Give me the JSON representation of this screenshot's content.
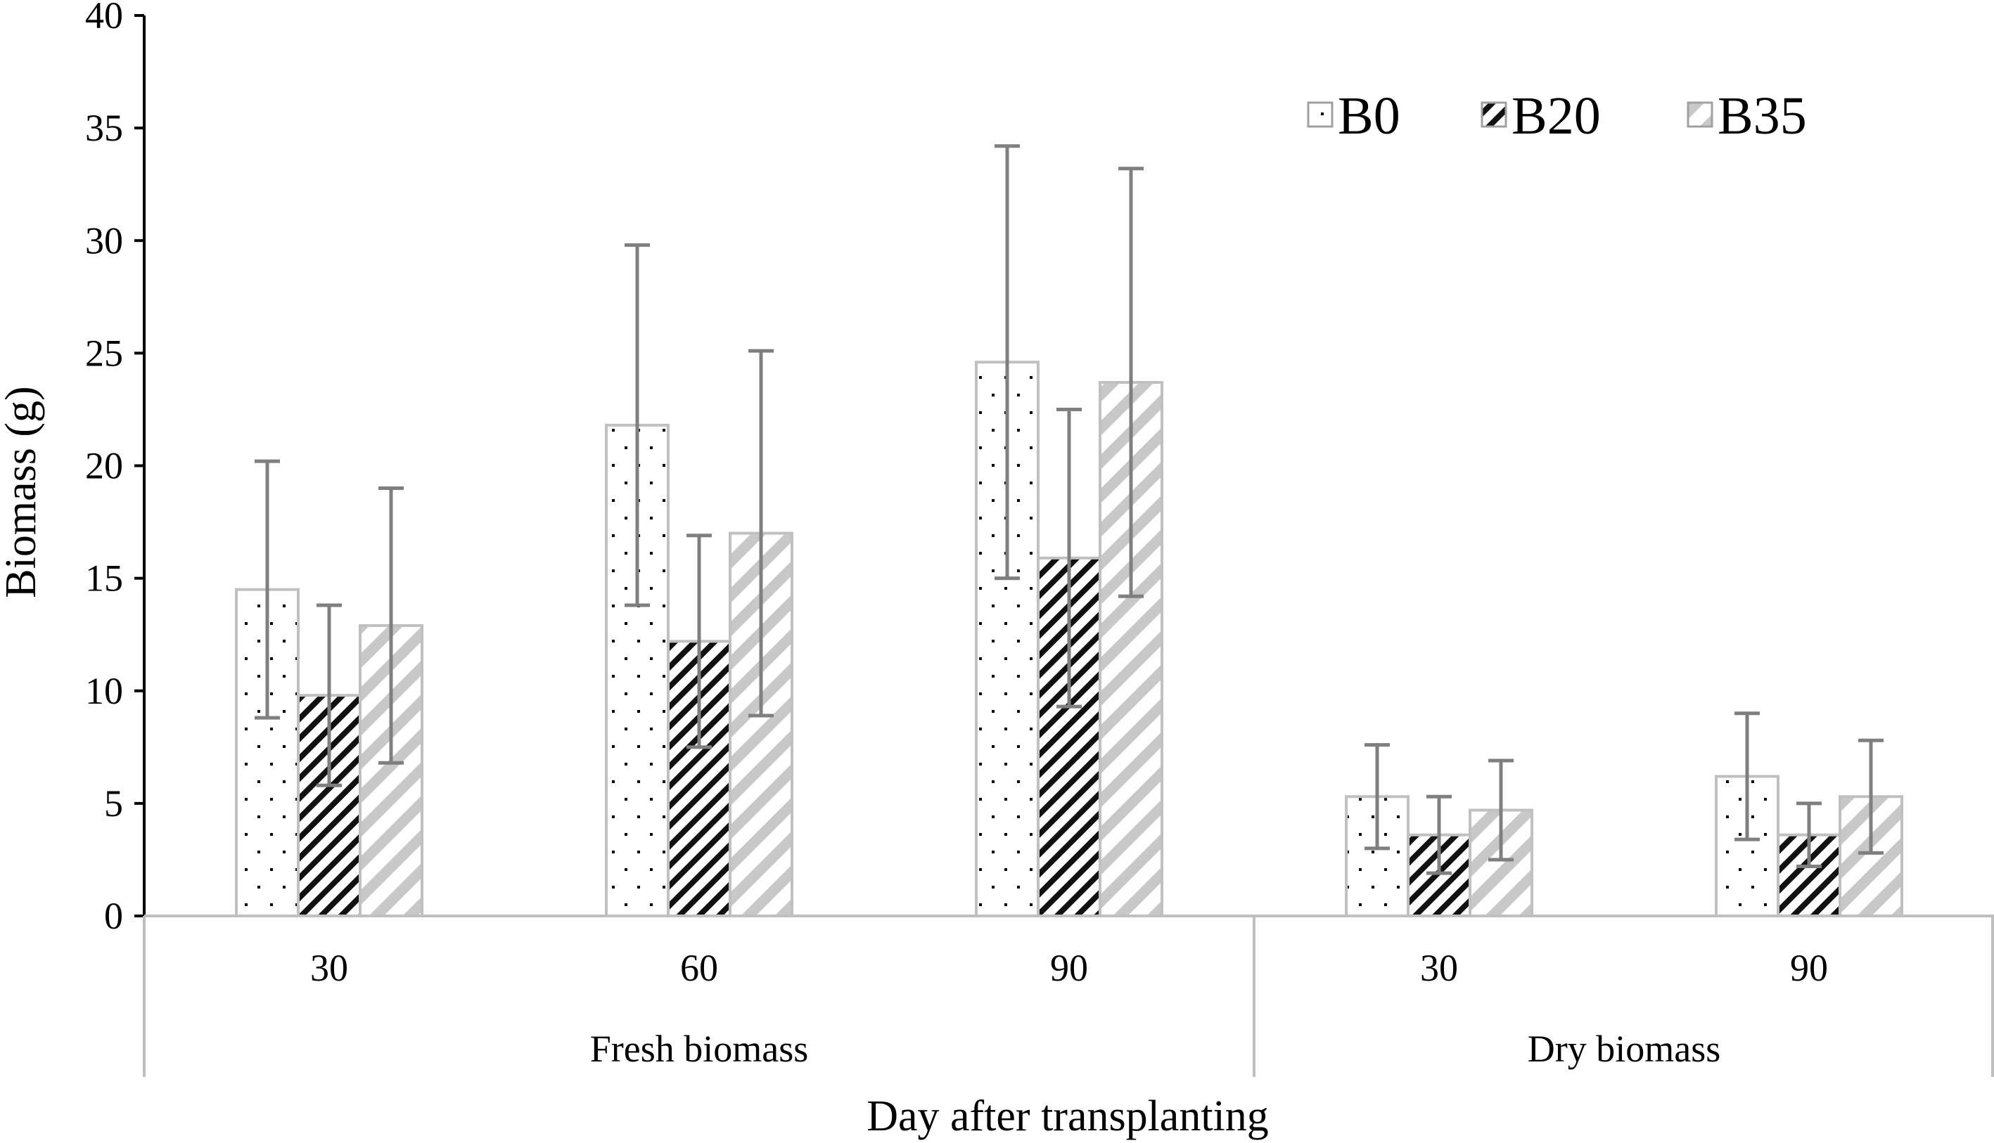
{
  "chart_data": {
    "type": "bar",
    "title": "",
    "xlabel": "Day after transplanting",
    "ylabel": "Biomass (g)",
    "ylim": [
      0,
      40
    ],
    "yticks": [
      0,
      5,
      10,
      15,
      20,
      25,
      30,
      35,
      40
    ],
    "groups": [
      {
        "name": "Fresh biomass",
        "categories": [
          "30",
          "60",
          "90"
        ]
      },
      {
        "name": "Dry biomass",
        "categories": [
          "30",
          "90"
        ]
      }
    ],
    "categories": [
      "30",
      "60",
      "90",
      "30",
      "90"
    ],
    "series": [
      {
        "name": "B0",
        "pattern": "dots",
        "values": [
          14.5,
          21.8,
          24.6,
          5.3,
          6.2
        ],
        "errors": [
          5.7,
          8.0,
          9.6,
          2.3,
          2.8
        ]
      },
      {
        "name": "B20",
        "pattern": "dense-hatch",
        "values": [
          9.8,
          12.2,
          15.9,
          3.6,
          3.6
        ],
        "errors": [
          4.0,
          4.7,
          6.6,
          1.7,
          1.4
        ]
      },
      {
        "name": "B35",
        "pattern": "light-hatch",
        "values": [
          12.9,
          17.0,
          23.7,
          4.7,
          5.3
        ],
        "errors": [
          6.1,
          8.1,
          9.5,
          2.2,
          2.5
        ]
      }
    ],
    "legend": {
      "position": "top-right",
      "entries": [
        "B0",
        "B20",
        "B35"
      ]
    },
    "grid": false
  }
}
